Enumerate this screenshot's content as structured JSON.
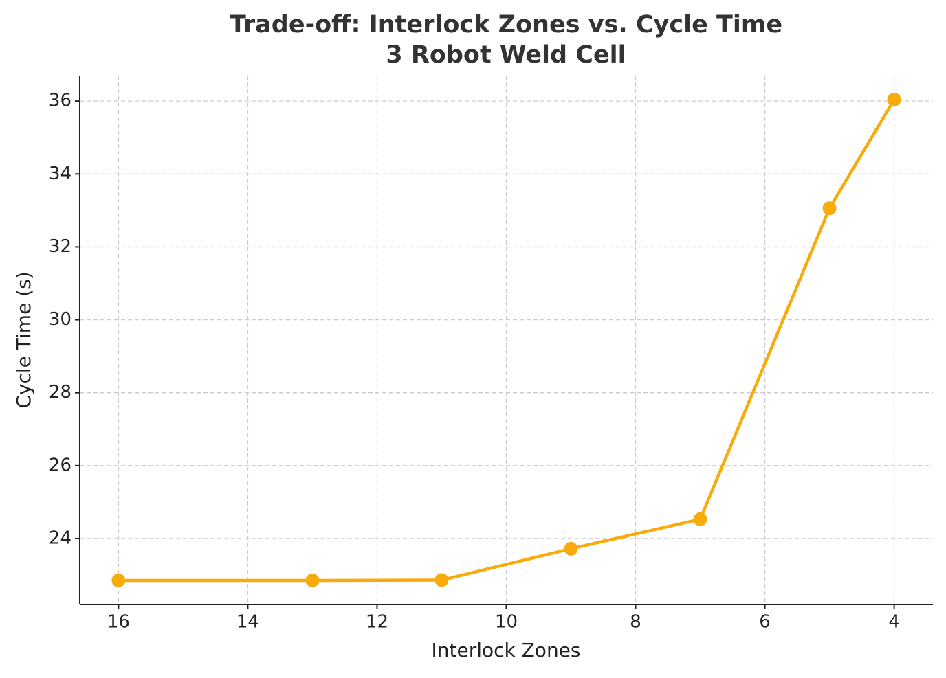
{
  "chart_data": {
    "type": "line",
    "title": "Trade-off: Interlock Zones vs. Cycle Time",
    "subtitle": "3 Robot Weld Cell",
    "x_label": "Interlock Zones",
    "y_label": "Cycle Time (s)",
    "x": [
      16,
      13,
      11,
      9,
      7,
      5,
      4
    ],
    "series": [
      {
        "color": "#f9ab0c",
        "values": [
          22.85,
          22.85,
          22.86,
          23.72,
          24.53,
          33.06,
          36.04
        ]
      }
    ],
    "xlim": [
      16.6,
      3.4
    ],
    "xticks": [
      16,
      14,
      12,
      10,
      8,
      6,
      4
    ],
    "ylim": [
      22.19,
      36.7
    ],
    "yticks": [
      24,
      26,
      28,
      30,
      32,
      34,
      36
    ],
    "grid": true
  }
}
